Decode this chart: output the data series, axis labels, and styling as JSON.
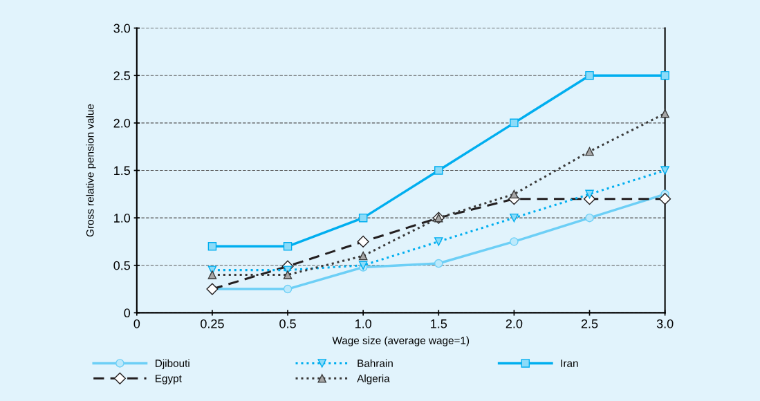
{
  "chart_data": {
    "type": "line",
    "xlabel": "Wage size (average wage=1)",
    "ylabel": "Gross relative pension value",
    "categories": [
      "0",
      "0.25",
      "0.5",
      "1.0",
      "1.5",
      "2.0",
      "2.5",
      "3.0"
    ],
    "series": [
      {
        "name": "Djibouti",
        "color": "#6dcff6",
        "marker": "circle",
        "line_style": "solid",
        "values": [
          null,
          0.25,
          0.25,
          0.48,
          0.52,
          0.75,
          1.0,
          1.25
        ]
      },
      {
        "name": "Egypt",
        "color": "#231f20",
        "marker": "diamond",
        "line_style": "dashed",
        "values": [
          null,
          0.25,
          0.49,
          0.75,
          1.0,
          1.2,
          1.2,
          1.2
        ]
      },
      {
        "name": "Bahrain",
        "color": "#00aeef",
        "marker": "triangle_down",
        "line_style": "dotted",
        "values": [
          null,
          0.45,
          0.45,
          0.5,
          0.75,
          1.0,
          1.25,
          1.5
        ]
      },
      {
        "name": "Algeria",
        "color": "#3a3a3a",
        "marker": "triangle",
        "line_style": "dotted",
        "values": [
          null,
          0.4,
          0.4,
          0.6,
          1.0,
          1.25,
          1.7,
          2.1
        ]
      },
      {
        "name": "Iran",
        "color": "#00aeef",
        "marker": "square",
        "line_style": "solid",
        "values": [
          null,
          0.7,
          0.7,
          1.0,
          1.5,
          2.0,
          2.5,
          2.5
        ]
      }
    ],
    "ylim": [
      0,
      3.0
    ],
    "yticks": [
      0,
      {
        "value": 0.5,
        "label": "0.5"
      },
      {
        "value": 1.0,
        "label": "1.0"
      },
      {
        "value": 1.5,
        "label": "1.5"
      },
      {
        "value": 2.0,
        "label": "2.0"
      },
      {
        "value": 2.5,
        "label": "2.5"
      },
      {
        "value": 3.0,
        "label": "3.0"
      }
    ],
    "grid": "y",
    "legend": "bottom"
  }
}
